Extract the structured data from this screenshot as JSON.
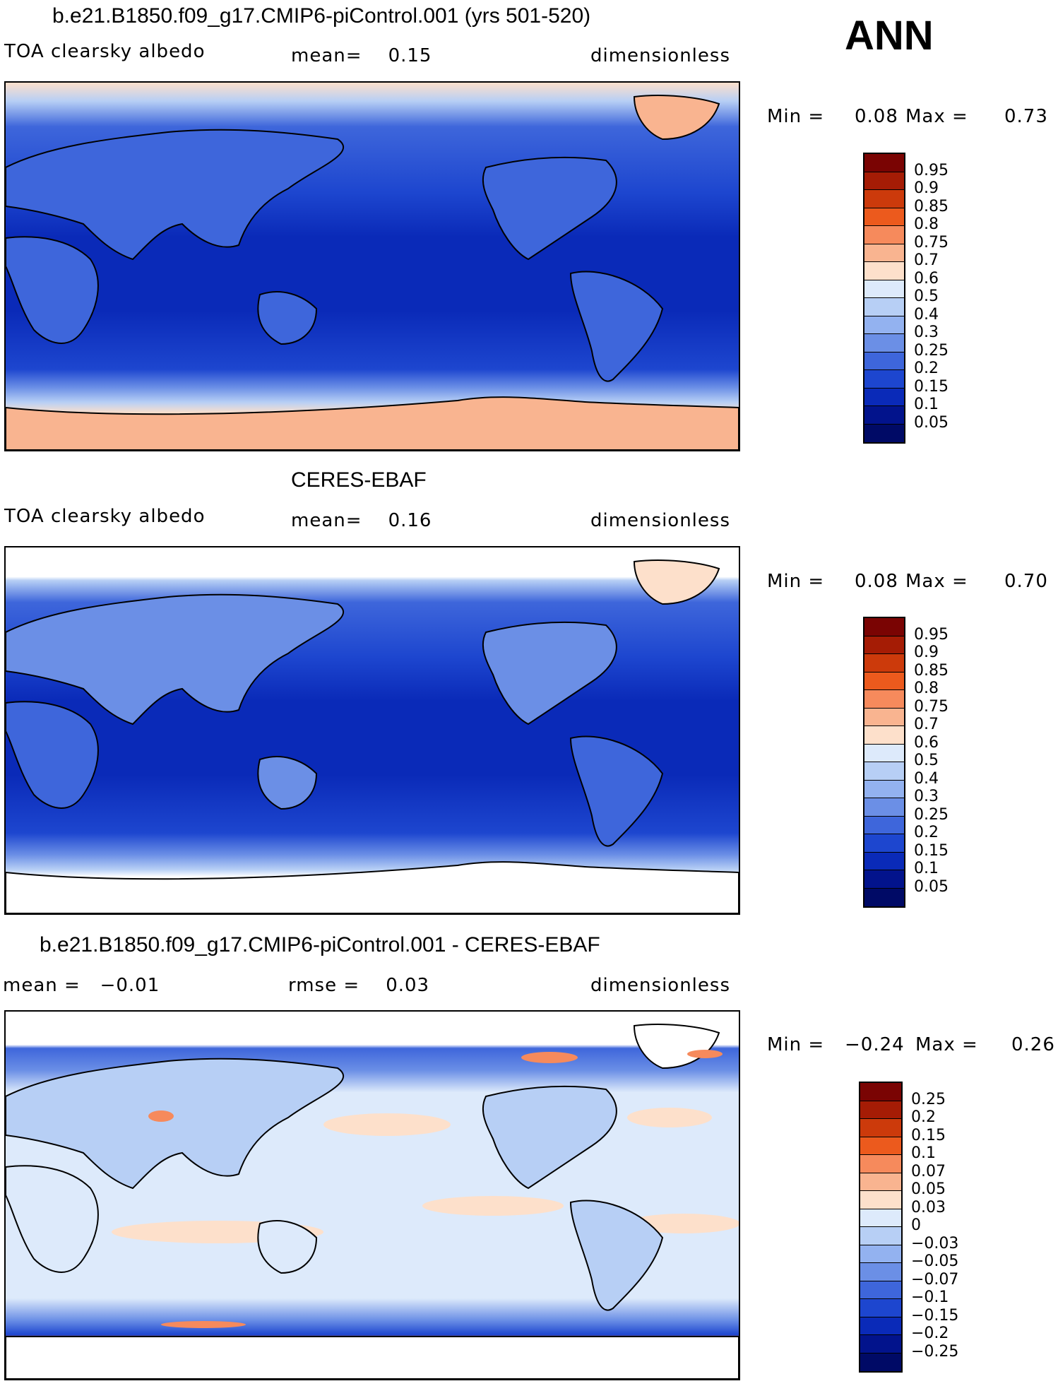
{
  "season": "ANN",
  "panels": [
    {
      "title": "b.e21.B1850.f09_g17.CMIP6-piControl.001 (yrs 501-520)",
      "left": "TOA clearsky albedo",
      "center": "mean=    0.15",
      "right": "dimensionless",
      "minmax": {
        "min_label": "Min =",
        "min": "0.08",
        "max_label": "Max =",
        "max": "0.73"
      },
      "colorbar": [
        "0.95",
        "0.9",
        "0.85",
        "0.8",
        "0.75",
        "0.7",
        "0.6",
        "0.5",
        "0.4",
        "0.3",
        "0.25",
        "0.2",
        "0.15",
        "0.1",
        "0.05"
      ]
    },
    {
      "title": "CERES-EBAF",
      "left": "TOA clearsky albedo",
      "center": "mean=    0.16",
      "right": "dimensionless",
      "minmax": {
        "min_label": "Min =",
        "min": "0.08",
        "max_label": "Max =",
        "max": "0.70"
      },
      "colorbar": [
        "0.95",
        "0.9",
        "0.85",
        "0.8",
        "0.75",
        "0.7",
        "0.6",
        "0.5",
        "0.4",
        "0.3",
        "0.25",
        "0.2",
        "0.15",
        "0.1",
        "0.05"
      ]
    },
    {
      "title": "b.e21.B1850.f09_g17.CMIP6-piControl.001 - CERES-EBAF",
      "left": "mean =   −0.01",
      "center": "rmse =    0.03",
      "right": "dimensionless",
      "minmax": {
        "min_label": "Min =",
        "min": "−0.24",
        "max_label": "Max =",
        "max": "0.26"
      },
      "colorbar": [
        "0.25",
        "0.2",
        "0.15",
        "0.1",
        "0.07",
        "0.05",
        "0.03",
        "0",
        "−0.03",
        "−0.05",
        "−0.07",
        "−0.1",
        "−0.15",
        "−0.2",
        "−0.25"
      ]
    }
  ],
  "colors": {
    "albedo_scale": [
      "#7a0403",
      "#a51c05",
      "#cc3a0b",
      "#ec5a1d",
      "#f68a5c",
      "#f9b490",
      "#fde0cb",
      "#ddeafb",
      "#b7cff5",
      "#93b2f0",
      "#6b8fe6",
      "#3e66db",
      "#1d46cf",
      "#0a2ab8",
      "#02138c",
      "#000a66"
    ],
    "diff_scale": [
      "#7a0403",
      "#a51c05",
      "#cc3a0b",
      "#ec5a1d",
      "#f68a5c",
      "#f9b490",
      "#fde0cb",
      "#ddeafb",
      "#b7cff5",
      "#93b2f0",
      "#6b8fe6",
      "#3e66db",
      "#1d46cf",
      "#0a2ab8",
      "#02138c",
      "#000a66"
    ]
  },
  "chart_data": [
    {
      "type": "heatmap",
      "title": "b.e21.B1850.f09_g17.CMIP6-piControl.001 (yrs 501-520)",
      "variable": "TOA clearsky albedo",
      "units": "dimensionless",
      "mean": 0.15,
      "min": 0.08,
      "max": 0.73,
      "levels": [
        0.05,
        0.1,
        0.15,
        0.2,
        0.25,
        0.3,
        0.4,
        0.5,
        0.6,
        0.7,
        0.75,
        0.8,
        0.85,
        0.9,
        0.95
      ]
    },
    {
      "type": "heatmap",
      "title": "CERES-EBAF",
      "variable": "TOA clearsky albedo",
      "units": "dimensionless",
      "mean": 0.16,
      "min": 0.08,
      "max": 0.7,
      "levels": [
        0.05,
        0.1,
        0.15,
        0.2,
        0.25,
        0.3,
        0.4,
        0.5,
        0.6,
        0.7,
        0.75,
        0.8,
        0.85,
        0.9,
        0.95
      ]
    },
    {
      "type": "heatmap",
      "title": "b.e21.B1850.f09_g17.CMIP6-piControl.001 - CERES-EBAF",
      "units": "dimensionless",
      "mean": -0.01,
      "rmse": 0.03,
      "min": -0.24,
      "max": 0.26,
      "levels": [
        -0.25,
        -0.2,
        -0.15,
        -0.1,
        -0.07,
        -0.05,
        -0.03,
        0,
        0.03,
        0.05,
        0.07,
        0.1,
        0.15,
        0.2,
        0.25
      ]
    }
  ]
}
